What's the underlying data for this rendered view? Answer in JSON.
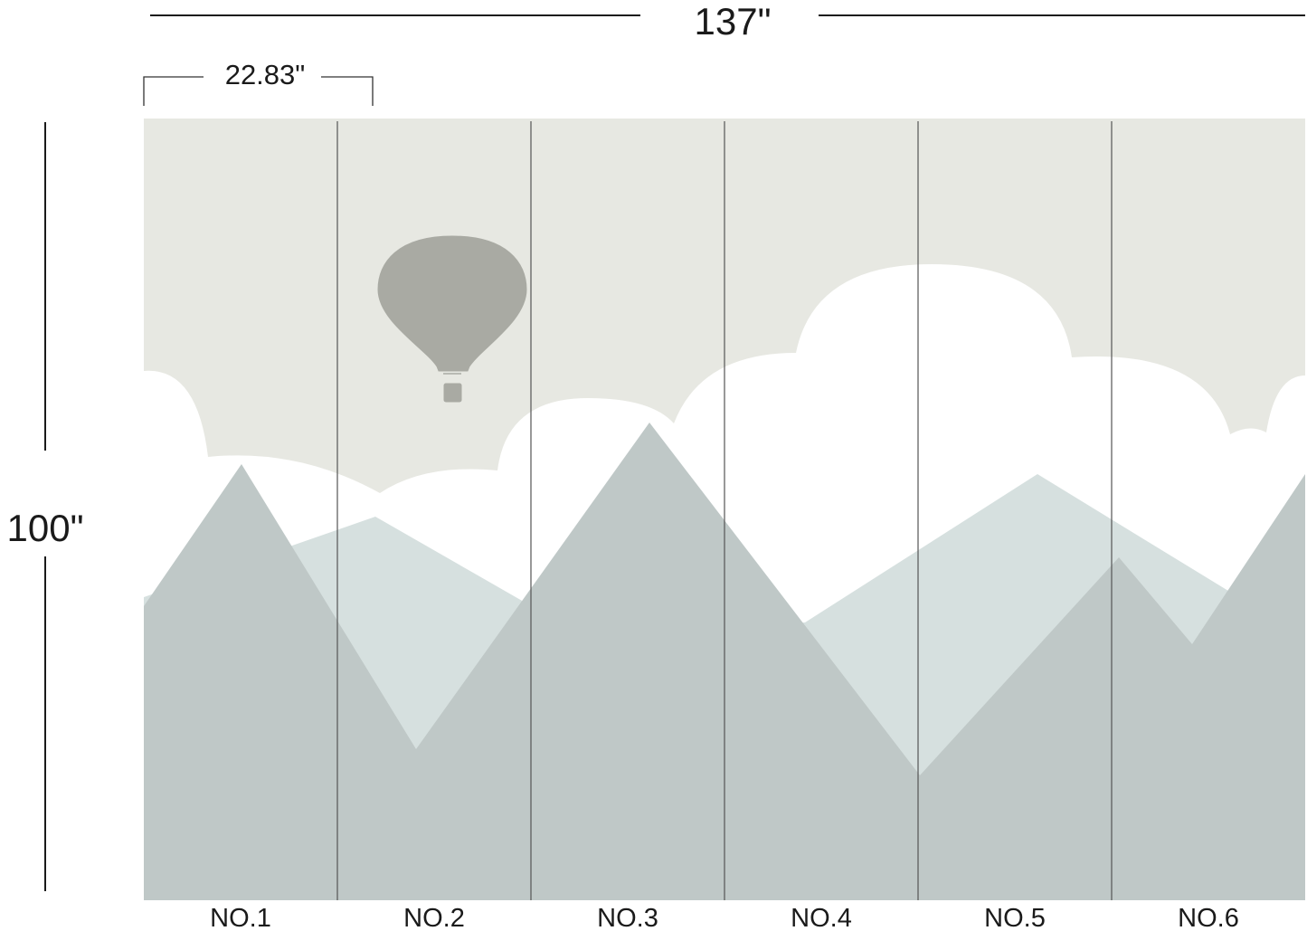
{
  "dimensions": {
    "width_label": "137\"",
    "height_label": "100\"",
    "panel_width_label": "22.83\""
  },
  "panels": [
    "NO.1",
    "NO.2",
    "NO.3",
    "NO.4",
    "NO.5",
    "NO.6"
  ],
  "colors": {
    "sky": "#e7e8e2",
    "cloud": "#ffffff",
    "back_mountain": "#d6e0df",
    "front_mountain": "#bfc8c7",
    "balloon": "#a9aaa3",
    "panel_line": "#555555"
  }
}
